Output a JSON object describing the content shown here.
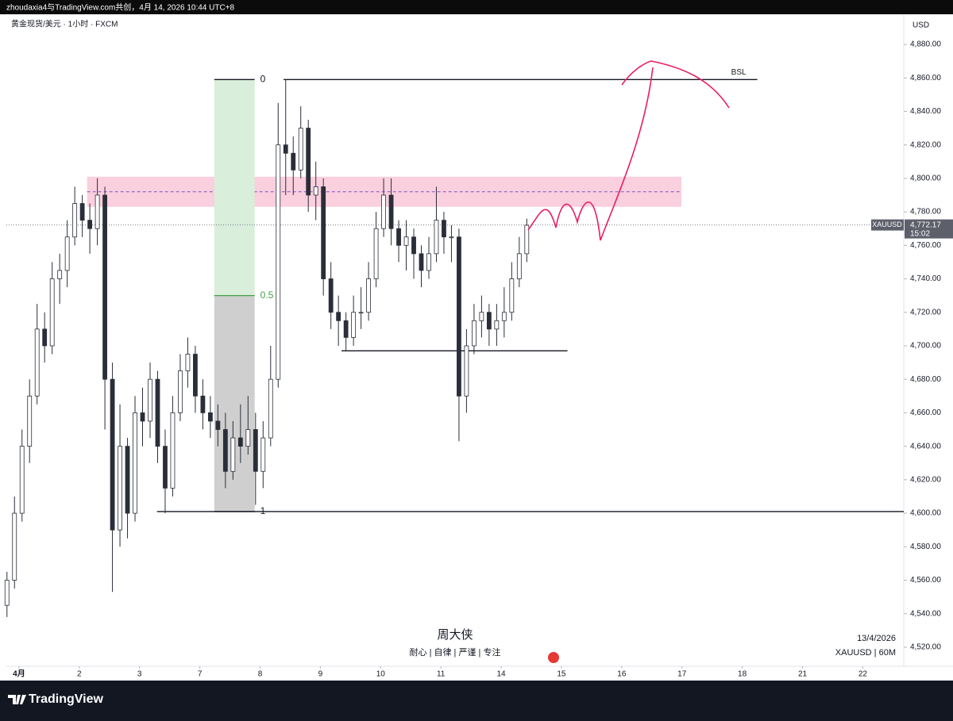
{
  "header": {
    "text": "zhoudaxia4与TradingView.com共创，4月 14, 2026 10:44 UTC+8"
  },
  "chart_data": {
    "type": "candlestick",
    "title": "黄金现货/美元 · 1小时 · FXCM",
    "y_unit": "USD",
    "x": [
      -0.2,
      -0.075,
      0.05,
      0.175,
      0.3,
      0.425,
      0.55,
      0.675,
      0.8,
      0.925,
      1.05,
      1.175,
      1.3,
      1.425,
      1.55,
      1.675,
      1.8,
      1.925,
      2.05,
      2.175,
      2.3,
      2.425,
      2.55,
      2.675,
      2.8,
      2.925,
      3.05,
      3.175,
      3.3,
      3.425,
      3.55,
      3.675,
      3.8,
      3.925,
      4.05,
      4.175,
      4.3,
      4.425,
      4.55,
      4.675,
      4.8,
      4.925,
      5.05,
      5.175,
      5.3,
      5.425,
      5.55,
      5.675,
      5.8,
      5.925,
      6.05,
      6.175,
      6.3,
      6.425,
      6.55,
      6.675,
      6.8,
      6.925,
      7.05,
      7.175,
      7.3,
      7.425,
      7.55,
      7.675,
      7.8,
      7.925,
      8.05,
      8.175,
      8.3,
      8.425
    ],
    "open": [
      4545,
      4560,
      4600,
      4640,
      4670,
      4710,
      4700,
      4740,
      4745,
      4765,
      4785,
      4775,
      4770,
      4790,
      4680,
      4590,
      4640,
      4600,
      4660,
      4655,
      4680,
      4640,
      4615,
      4660,
      4685,
      4695,
      4670,
      4660,
      4655,
      4650,
      4625,
      4645,
      4640,
      4650,
      4625,
      4645,
      4680,
      4820,
      4815,
      4805,
      4830,
      4790,
      4795,
      4740,
      4720,
      4715,
      4705,
      4720,
      4720,
      4740,
      4770,
      4790,
      4770,
      4760,
      4765,
      4755,
      4745,
      4755,
      4775,
      4765,
      4765,
      4670,
      4700,
      4715,
      4720,
      4710,
      4715,
      4720,
      4740,
      4755
    ],
    "high": [
      4565,
      4610,
      4650,
      4680,
      4725,
      4720,
      4750,
      4755,
      4775,
      4795,
      4790,
      4785,
      4800,
      4795,
      4690,
      4665,
      4645,
      4670,
      4675,
      4690,
      4685,
      4650,
      4670,
      4695,
      4705,
      4700,
      4680,
      4670,
      4665,
      4660,
      4655,
      4665,
      4670,
      4660,
      4655,
      4700,
      4845,
      4859,
      4825,
      4843,
      4835,
      4810,
      4800,
      4750,
      4730,
      4720,
      4730,
      4735,
      4750,
      4780,
      4800,
      4800,
      4775,
      4775,
      4770,
      4760,
      4765,
      4795,
      4780,
      4772,
      4770,
      4710,
      4725,
      4730,
      4725,
      4725,
      4735,
      4750,
      4765,
      4776
    ],
    "low": [
      4538,
      4555,
      4595,
      4630,
      4665,
      4690,
      4695,
      4725,
      4735,
      4760,
      4765,
      4755,
      4760,
      4650,
      4553,
      4580,
      4585,
      4595,
      4640,
      4645,
      4630,
      4600,
      4610,
      4655,
      4675,
      4660,
      4650,
      4645,
      4640,
      4615,
      4620,
      4630,
      4635,
      4605,
      4615,
      4640,
      4675,
      4790,
      4790,
      4800,
      4780,
      4775,
      4730,
      4710,
      4700,
      4697,
      4700,
      4710,
      4715,
      4735,
      4765,
      4760,
      4750,
      4745,
      4740,
      4735,
      4740,
      4750,
      4755,
      4750,
      4643,
      4660,
      4695,
      4705,
      4700,
      4700,
      4705,
      4715,
      4735,
      4750
    ],
    "close": [
      4560,
      4600,
      4640,
      4670,
      4710,
      4700,
      4740,
      4745,
      4765,
      4785,
      4775,
      4770,
      4790,
      4680,
      4590,
      4640,
      4600,
      4660,
      4655,
      4680,
      4640,
      4615,
      4660,
      4685,
      4695,
      4670,
      4660,
      4655,
      4650,
      4625,
      4645,
      4640,
      4650,
      4625,
      4645,
      4680,
      4820,
      4815,
      4805,
      4830,
      4790,
      4795,
      4740,
      4720,
      4715,
      4705,
      4720,
      4720,
      4740,
      4770,
      4790,
      4770,
      4760,
      4765,
      4755,
      4745,
      4755,
      4775,
      4765,
      4765,
      4670,
      4700,
      4715,
      4720,
      4710,
      4715,
      4720,
      4740,
      4755,
      4772
    ],
    "up_color": "#ffffff",
    "down_color": "#2a2e39",
    "wick_color": "#2a2e39",
    "xlim": [
      -0.21,
      14.68
    ],
    "xticks": [
      {
        "value": 0,
        "label": "4月"
      },
      {
        "value": 1,
        "label": "2"
      },
      {
        "value": 2,
        "label": "3"
      },
      {
        "value": 3,
        "label": "7"
      },
      {
        "value": 4,
        "label": "8"
      },
      {
        "value": 5,
        "label": "9"
      },
      {
        "value": 6,
        "label": "10"
      },
      {
        "value": 7,
        "label": "11"
      },
      {
        "value": 8,
        "label": "14"
      },
      {
        "value": 9,
        "label": "15"
      },
      {
        "value": 10,
        "label": "16"
      },
      {
        "value": 11,
        "label": "17"
      },
      {
        "value": 12,
        "label": "18"
      },
      {
        "value": 13,
        "label": "21"
      },
      {
        "value": 14,
        "label": "22"
      }
    ],
    "ylim": [
      4508.6,
      4898
    ],
    "yticks": [
      {
        "value": 4520,
        "label": "4,520.00"
      },
      {
        "value": 4540,
        "label": "4,540.00"
      },
      {
        "value": 4560,
        "label": "4,560.00"
      },
      {
        "value": 4580,
        "label": "4,580.00"
      },
      {
        "value": 4600,
        "label": "4,600.00"
      },
      {
        "value": 4620,
        "label": "4,620.00"
      },
      {
        "value": 4640,
        "label": "4,640.00"
      },
      {
        "value": 4660,
        "label": "4,660.00"
      },
      {
        "value": 4680,
        "label": "4,680.00"
      },
      {
        "value": 4700,
        "label": "4,700.00"
      },
      {
        "value": 4720,
        "label": "4,720.00"
      },
      {
        "value": 4740,
        "label": "4,740.00"
      },
      {
        "value": 4760,
        "label": "4,760.00"
      },
      {
        "value": 4780,
        "label": "4,780.00"
      },
      {
        "value": 4800,
        "label": "4,800.00"
      },
      {
        "value": 4820,
        "label": "4,820.00"
      },
      {
        "value": 4840,
        "label": "4,840.00"
      },
      {
        "value": 4860,
        "label": "4,860.00"
      },
      {
        "value": 4880,
        "label": "4,880.00"
      }
    ],
    "last_price": {
      "value": 4772.17,
      "label": "4,772.17"
    },
    "last_symbol": "XAUUSD",
    "countdown": "15:02",
    "zone": {
      "top": 4801,
      "bottom": 4783,
      "mid": 4792,
      "x": [
        1.13,
        10.99
      ],
      "color": "#f8bbd0",
      "line_color": "#7e57c2"
    },
    "lines": [
      {
        "price": 4859,
        "x": [
          4.39,
          12.25
        ],
        "label": "BSL"
      },
      {
        "price": 4601,
        "x": [
          2.29,
          14.68
        ]
      },
      {
        "price": 4697,
        "x": [
          5.35,
          9.1
        ]
      }
    ],
    "fib": {
      "high": 4859,
      "low": 4601,
      "x": [
        3.24,
        3.91
      ],
      "levels": [
        0,
        0.5,
        1
      ],
      "upper_color": "#d9eedb",
      "lower_color": "#cfcfcf",
      "mid_color": "#43a047"
    }
  },
  "watermark": {
    "name": "周大侠",
    "motto": "耐心 | 自律 | 严谨 | 专注",
    "date": "13/4/2026",
    "symbol": "XAUUSD | 60M"
  },
  "footer": {
    "brand": "TradingView"
  }
}
